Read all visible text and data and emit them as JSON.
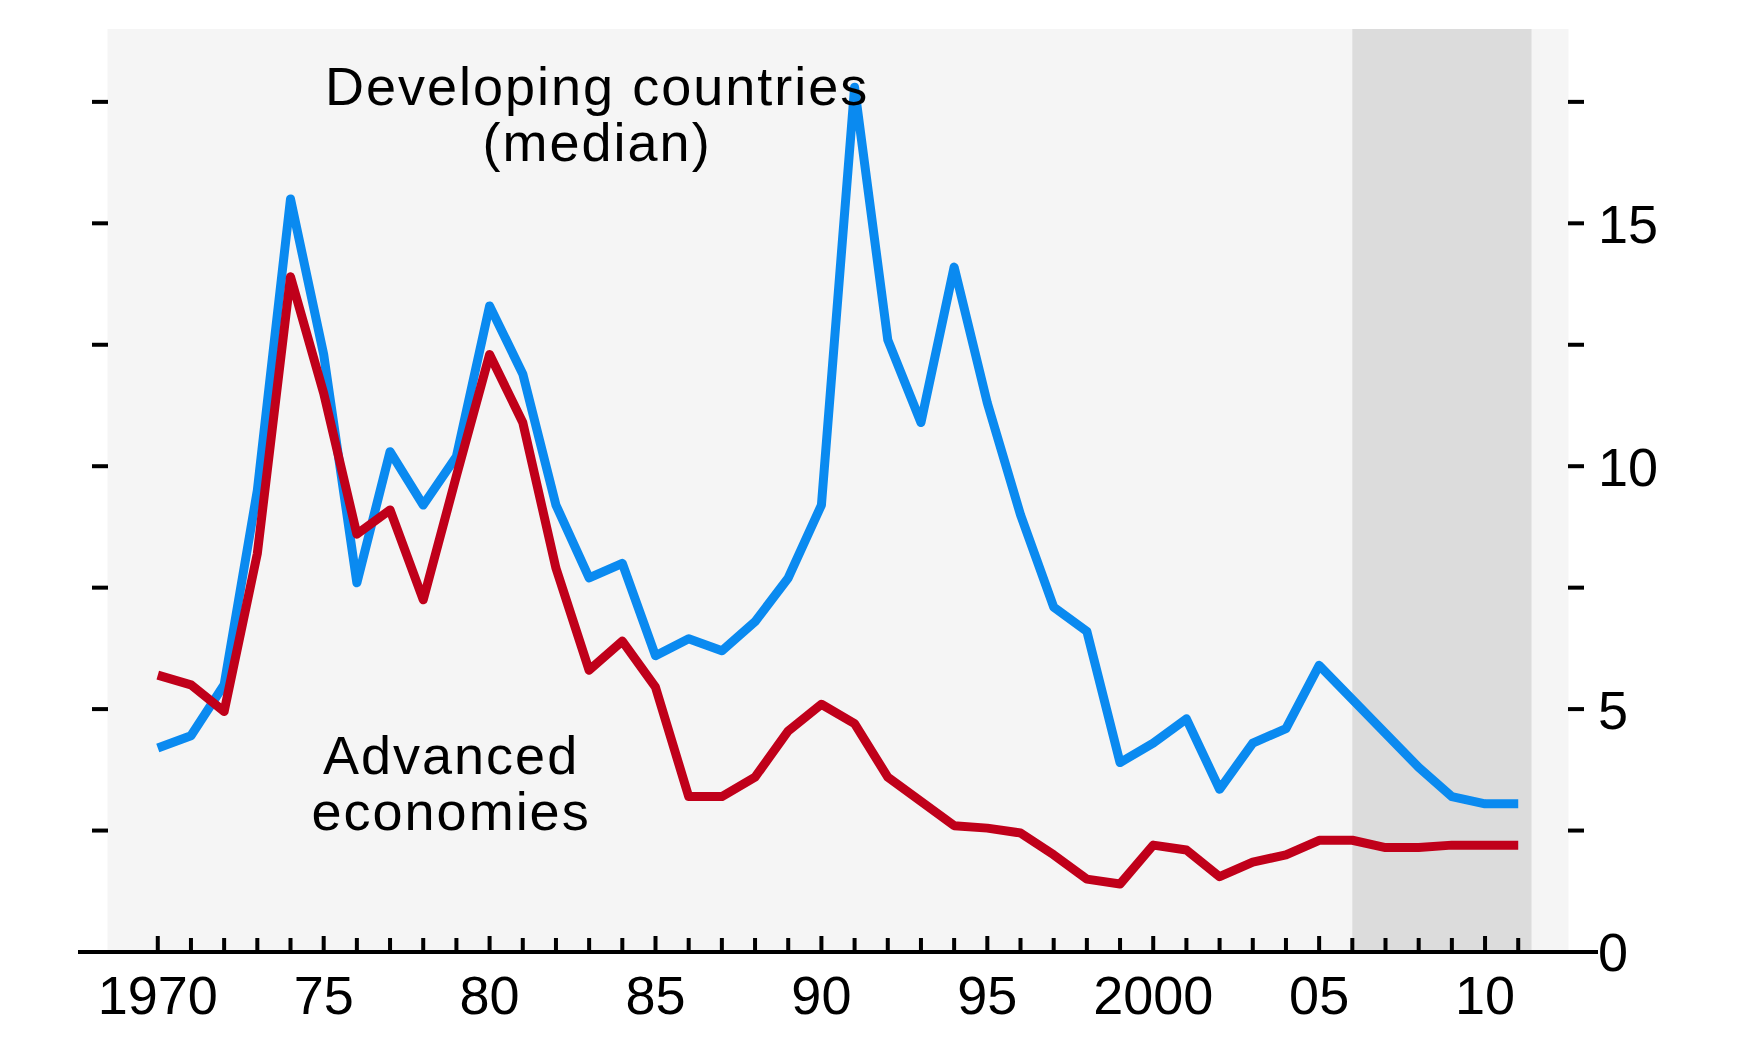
{
  "chart_data": {
    "type": "line",
    "x": [
      1970,
      1971,
      1972,
      1973,
      1974,
      1975,
      1976,
      1977,
      1978,
      1979,
      1980,
      1981,
      1982,
      1983,
      1984,
      1985,
      1986,
      1987,
      1988,
      1989,
      1990,
      1991,
      1992,
      1993,
      1994,
      1995,
      1996,
      1997,
      1998,
      1999,
      2000,
      2001,
      2002,
      2003,
      2004,
      2005,
      2006,
      2007,
      2008,
      2009,
      2010,
      2011
    ],
    "series": [
      {
        "name": "Developing countries (median)",
        "color": "#0a8af0",
        "values": [
          4.2,
          4.45,
          5.5,
          9.5,
          15.5,
          12.3,
          7.6,
          10.3,
          9.2,
          10.2,
          13.3,
          11.9,
          9.2,
          7.7,
          8.0,
          6.1,
          6.45,
          6.2,
          6.8,
          7.7,
          9.2,
          17.8,
          12.6,
          10.9,
          14.1,
          11.3,
          9.0,
          7.1,
          6.6,
          3.9,
          4.3,
          4.8,
          3.35,
          4.3,
          4.6,
          5.9,
          5.2,
          4.5,
          3.8,
          3.2,
          3.05,
          3.05
        ]
      },
      {
        "name": "Advanced economies",
        "color": "#c0001a",
        "values": [
          5.7,
          5.5,
          4.95,
          8.2,
          13.9,
          11.5,
          8.6,
          9.1,
          7.25,
          9.8,
          12.3,
          10.9,
          7.9,
          5.8,
          6.4,
          5.45,
          3.2,
          3.2,
          3.6,
          4.55,
          5.1,
          4.7,
          3.6,
          3.1,
          2.6,
          2.55,
          2.45,
          2.0,
          1.5,
          1.4,
          2.2,
          2.1,
          1.55,
          1.85,
          2.0,
          2.3,
          2.3,
          2.15,
          2.15,
          2.2,
          2.2,
          2.2
        ]
      }
    ],
    "xlim": [
      1968.5,
      2012.5
    ],
    "ylim": [
      0,
      19
    ],
    "xticks": [
      {
        "value": 1970,
        "label": "1970"
      },
      {
        "value": 1971,
        "label": null
      },
      {
        "value": 1972,
        "label": null
      },
      {
        "value": 1973,
        "label": null
      },
      {
        "value": 1974,
        "label": null
      },
      {
        "value": 1975,
        "label": "75"
      },
      {
        "value": 1976,
        "label": null
      },
      {
        "value": 1977,
        "label": null
      },
      {
        "value": 1978,
        "label": null
      },
      {
        "value": 1979,
        "label": null
      },
      {
        "value": 1980,
        "label": "80"
      },
      {
        "value": 1981,
        "label": null
      },
      {
        "value": 1982,
        "label": null
      },
      {
        "value": 1983,
        "label": null
      },
      {
        "value": 1984,
        "label": null
      },
      {
        "value": 1985,
        "label": "85"
      },
      {
        "value": 1986,
        "label": null
      },
      {
        "value": 1987,
        "label": null
      },
      {
        "value": 1988,
        "label": null
      },
      {
        "value": 1989,
        "label": null
      },
      {
        "value": 1990,
        "label": "90"
      },
      {
        "value": 1991,
        "label": null
      },
      {
        "value": 1992,
        "label": null
      },
      {
        "value": 1993,
        "label": null
      },
      {
        "value": 1994,
        "label": null
      },
      {
        "value": 1995,
        "label": "95"
      },
      {
        "value": 1996,
        "label": null
      },
      {
        "value": 1997,
        "label": null
      },
      {
        "value": 1998,
        "label": null
      },
      {
        "value": 1999,
        "label": null
      },
      {
        "value": 2000,
        "label": "2000"
      },
      {
        "value": 2001,
        "label": null
      },
      {
        "value": 2002,
        "label": null
      },
      {
        "value": 2003,
        "label": null
      },
      {
        "value": 2004,
        "label": null
      },
      {
        "value": 2005,
        "label": "05"
      },
      {
        "value": 2006,
        "label": null
      },
      {
        "value": 2007,
        "label": null
      },
      {
        "value": 2008,
        "label": null
      },
      {
        "value": 2009,
        "label": null
      },
      {
        "value": 2010,
        "label": "10"
      },
      {
        "value": 2011,
        "label": null
      }
    ],
    "yticks": [
      0,
      {
        "value": 2.5,
        "label": null
      },
      5,
      {
        "value": 7.5,
        "label": null
      },
      10,
      {
        "value": 12.5,
        "label": null
      },
      15,
      {
        "value": 17.5,
        "label": null
      }
    ],
    "bands": [
      {
        "axis": "x",
        "from": 2006,
        "to": 2011.4,
        "color": "#dcdcdc"
      }
    ],
    "grid": false,
    "line_style": "solid",
    "marker": "none"
  }
}
